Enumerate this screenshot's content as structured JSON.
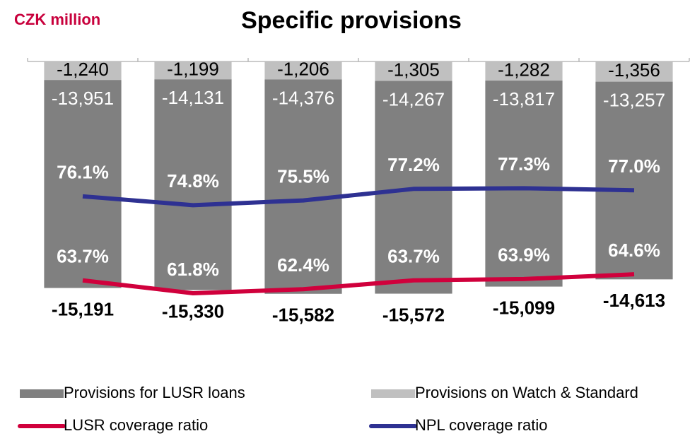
{
  "chart_data": {
    "type": "bar",
    "title": "Specific provisions",
    "unit_label": "CZK million",
    "categories": [
      null,
      null,
      null,
      null,
      null,
      null
    ],
    "ylim": [
      -20000,
      0
    ],
    "y2lim": [
      52,
      96
    ],
    "series": [
      {
        "name": "Provisions for LUSR loans",
        "type": "bar",
        "color": "#808080",
        "values": [
          -13951,
          -14131,
          -14376,
          -14267,
          -13817,
          -13257
        ],
        "value_labels": [
          "-13,951",
          "-14,131",
          "-14,376",
          "-14,267",
          "-13,817",
          "-13,257"
        ]
      },
      {
        "name": "Provisions on Watch & Standard",
        "type": "bar",
        "color": "#c0c0c0",
        "values": [
          -1240,
          -1199,
          -1206,
          -1305,
          -1282,
          -1356
        ],
        "value_labels": [
          "-1,240",
          "-1,199",
          "-1,206",
          "-1,305",
          "-1,282",
          "-1,356"
        ]
      },
      {
        "name": "LUSR coverage ratio",
        "type": "line",
        "axis": "y2",
        "color": "#d0003c",
        "values": [
          63.7,
          61.8,
          62.4,
          63.7,
          63.9,
          64.6
        ],
        "value_labels": [
          "63.7%",
          "61.8%",
          "62.4%",
          "63.7%",
          "63.9%",
          "64.6%"
        ]
      },
      {
        "name": "NPL coverage ratio",
        "type": "line",
        "axis": "y2",
        "color": "#2e3192",
        "values": [
          76.1,
          74.8,
          75.5,
          77.2,
          77.3,
          77.0
        ],
        "value_labels": [
          "76.1%",
          "74.8%",
          "75.5%",
          "77.2%",
          "77.3%",
          "77.0%"
        ]
      }
    ],
    "totals": [
      -15191,
      -15330,
      -15582,
      -15572,
      -15099,
      -14613
    ],
    "total_labels": [
      "-15,191",
      "-15,330",
      "-15,582",
      "-15,572",
      "-15,099",
      "-14,613"
    ]
  }
}
